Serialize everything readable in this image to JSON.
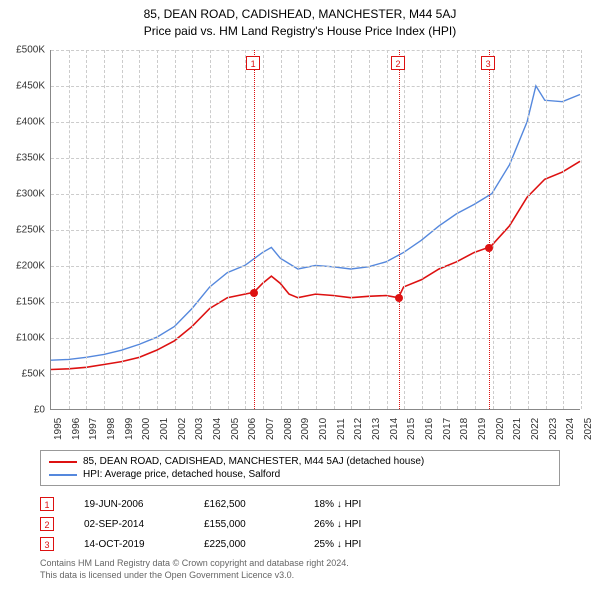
{
  "title_line1": "85, DEAN ROAD, CADISHEAD, MANCHESTER, M44 5AJ",
  "title_line2": "Price paid vs. HM Land Registry's House Price Index (HPI)",
  "chart": {
    "type": "line",
    "background_color": "#ffffff",
    "grid_color": "#cccccc",
    "axis_color": "#888888",
    "x_start_year": 1995,
    "x_end_year": 2025,
    "ylim": [
      0,
      500000
    ],
    "ytick_step": 50000,
    "y_ticks": [
      "£0",
      "£50K",
      "£100K",
      "£150K",
      "£200K",
      "£250K",
      "£300K",
      "£350K",
      "£400K",
      "£450K",
      "£500K"
    ],
    "x_ticks": [
      "1995",
      "1996",
      "1997",
      "1998",
      "1999",
      "2000",
      "2001",
      "2002",
      "2003",
      "2004",
      "2005",
      "2006",
      "2007",
      "2008",
      "2009",
      "2010",
      "2011",
      "2012",
      "2013",
      "2014",
      "2015",
      "2016",
      "2017",
      "2018",
      "2019",
      "2020",
      "2021",
      "2022",
      "2023",
      "2024",
      "2025"
    ],
    "series": {
      "property": {
        "label": "85, DEAN ROAD, CADISHEAD, MANCHESTER, M44 5AJ (detached house)",
        "color": "#dd1111",
        "line_width": 1.6,
        "data": [
          [
            1995.0,
            55000
          ],
          [
            1996.0,
            56000
          ],
          [
            1997.0,
            58000
          ],
          [
            1998.0,
            62000
          ],
          [
            1999.0,
            66000
          ],
          [
            2000.0,
            72000
          ],
          [
            2001.0,
            82000
          ],
          [
            2002.0,
            95000
          ],
          [
            2003.0,
            115000
          ],
          [
            2004.0,
            140000
          ],
          [
            2005.0,
            155000
          ],
          [
            2006.0,
            160000
          ],
          [
            2006.5,
            162500
          ],
          [
            2007.0,
            175000
          ],
          [
            2007.5,
            185000
          ],
          [
            2008.0,
            175000
          ],
          [
            2008.5,
            160000
          ],
          [
            2009.0,
            155000
          ],
          [
            2010.0,
            160000
          ],
          [
            2011.0,
            158000
          ],
          [
            2012.0,
            155000
          ],
          [
            2013.0,
            157000
          ],
          [
            2014.0,
            158000
          ],
          [
            2014.7,
            155000
          ],
          [
            2015.0,
            170000
          ],
          [
            2016.0,
            180000
          ],
          [
            2017.0,
            195000
          ],
          [
            2018.0,
            205000
          ],
          [
            2019.0,
            218000
          ],
          [
            2019.8,
            225000
          ],
          [
            2020.0,
            228000
          ],
          [
            2021.0,
            255000
          ],
          [
            2022.0,
            295000
          ],
          [
            2023.0,
            320000
          ],
          [
            2024.0,
            330000
          ],
          [
            2025.0,
            345000
          ]
        ]
      },
      "hpi": {
        "label": "HPI: Average price, detached house, Salford",
        "color": "#5588dd",
        "line_width": 1.4,
        "data": [
          [
            1995.0,
            68000
          ],
          [
            1996.0,
            69000
          ],
          [
            1997.0,
            72000
          ],
          [
            1998.0,
            76000
          ],
          [
            1999.0,
            82000
          ],
          [
            2000.0,
            90000
          ],
          [
            2001.0,
            100000
          ],
          [
            2002.0,
            115000
          ],
          [
            2003.0,
            140000
          ],
          [
            2004.0,
            170000
          ],
          [
            2005.0,
            190000
          ],
          [
            2006.0,
            200000
          ],
          [
            2007.0,
            218000
          ],
          [
            2007.5,
            225000
          ],
          [
            2008.0,
            210000
          ],
          [
            2009.0,
            195000
          ],
          [
            2010.0,
            200000
          ],
          [
            2011.0,
            198000
          ],
          [
            2012.0,
            195000
          ],
          [
            2013.0,
            198000
          ],
          [
            2014.0,
            205000
          ],
          [
            2015.0,
            218000
          ],
          [
            2016.0,
            235000
          ],
          [
            2017.0,
            255000
          ],
          [
            2018.0,
            272000
          ],
          [
            2019.0,
            285000
          ],
          [
            2020.0,
            300000
          ],
          [
            2021.0,
            340000
          ],
          [
            2022.0,
            400000
          ],
          [
            2022.5,
            450000
          ],
          [
            2023.0,
            430000
          ],
          [
            2024.0,
            428000
          ],
          [
            2025.0,
            438000
          ]
        ]
      }
    },
    "markers": [
      {
        "num": "1",
        "year": 2006.5,
        "price": 162500,
        "color": "#dd1111"
      },
      {
        "num": "2",
        "year": 2014.7,
        "price": 155000,
        "color": "#dd1111"
      },
      {
        "num": "3",
        "year": 2019.8,
        "price": 225000,
        "color": "#dd1111"
      }
    ]
  },
  "legend": [
    {
      "color": "#dd1111",
      "label": "85, DEAN ROAD, CADISHEAD, MANCHESTER, M44 5AJ (detached house)"
    },
    {
      "color": "#5588dd",
      "label": "HPI: Average price, detached house, Salford"
    }
  ],
  "events": [
    {
      "num": "1",
      "color": "#dd1111",
      "date": "19-JUN-2006",
      "price": "£162,500",
      "delta": "18% ↓ HPI"
    },
    {
      "num": "2",
      "color": "#dd1111",
      "date": "02-SEP-2014",
      "price": "£155,000",
      "delta": "26% ↓ HPI"
    },
    {
      "num": "3",
      "color": "#dd1111",
      "date": "14-OCT-2019",
      "price": "£225,000",
      "delta": "25% ↓ HPI"
    }
  ],
  "footer_line1": "Contains HM Land Registry data © Crown copyright and database right 2024.",
  "footer_line2": "This data is licensed under the Open Government Licence v3.0."
}
